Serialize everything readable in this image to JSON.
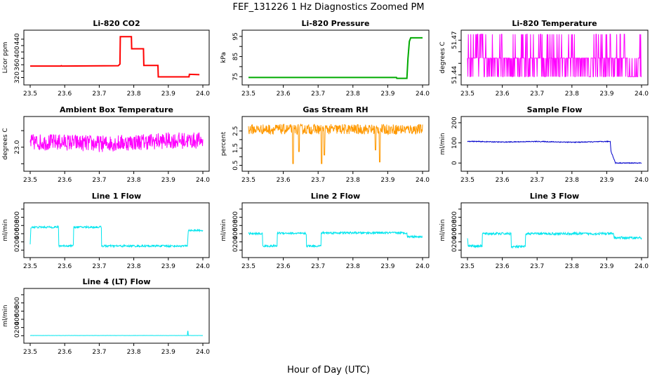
{
  "figure": {
    "title": "FEF_131226  1 Hz Diagnostics Zoomed PM",
    "xlabel": "Hour of Day (UTC)"
  },
  "chart_data": [
    {
      "type": "line",
      "title": "Li-820 CO2",
      "ylabel": "Licor ppm",
      "color": "#ff0000",
      "xlim": [
        23.5,
        24.0
      ],
      "xticks": [
        "23.5",
        "23.6",
        "23.7",
        "23.8",
        "23.9",
        "24.0"
      ],
      "ylim": [
        310,
        455
      ],
      "yticks": [
        320,
        340,
        360,
        380,
        400,
        420,
        440
      ],
      "ytick_labels": [
        "320",
        "",
        "360",
        "",
        "400",
        "",
        "440"
      ],
      "noise": 0,
      "x": [
        23.5,
        23.589,
        23.59,
        23.592,
        23.755,
        23.76,
        23.761,
        23.793,
        23.794,
        23.828,
        23.829,
        23.87,
        23.871,
        23.96,
        23.961,
        23.99
      ],
      "y": [
        356,
        356,
        357,
        356,
        357,
        362,
        448,
        448,
        410,
        410,
        358,
        358,
        322,
        322,
        330,
        329
      ]
    },
    {
      "type": "line",
      "title": "Li-820 Pressure",
      "ylabel": "kPa",
      "color": "#00aa00",
      "xlim": [
        23.5,
        24.0
      ],
      "xticks": [
        "23.5",
        "23.6",
        "23.7",
        "23.8",
        "23.9",
        "24.0"
      ],
      "ylim": [
        73,
        96
      ],
      "yticks": [
        75,
        80,
        85,
        90,
        95
      ],
      "ytick_labels": [
        "75",
        "",
        "85",
        "",
        "95"
      ],
      "noise": 0,
      "x": [
        23.5,
        23.925,
        23.926,
        23.955,
        23.958,
        23.962,
        23.966,
        24.0
      ],
      "y": [
        74.6,
        74.6,
        74.2,
        74.2,
        84.0,
        92.5,
        94.3,
        94.3
      ]
    },
    {
      "type": "line",
      "title": "Li-820 Temperature",
      "ylabel": "degrees C",
      "color": "#ff00ff",
      "xlim": [
        23.5,
        24.0
      ],
      "xticks": [
        "23.5",
        "23.6",
        "23.7",
        "23.8",
        "23.9",
        "24.0"
      ],
      "ylim": [
        51.435,
        51.475
      ],
      "yticks": [
        51.44,
        51.45,
        51.46,
        51.47
      ],
      "ytick_labels": [
        "51.44",
        "",
        "",
        "51.47"
      ],
      "noise": 0,
      "levels": [
        51.4385,
        51.4545,
        51.4752
      ],
      "x": [
        23.5,
        24.0
      ],
      "y": [
        51.4385,
        51.4545
      ]
    },
    {
      "type": "line",
      "title": "Ambient Box Temperature",
      "ylabel": "degrees C",
      "color": "#ff00ff",
      "xlim": [
        23.5,
        24.0
      ],
      "xticks": [
        "23.5",
        "23.6",
        "23.7",
        "23.8",
        "23.9",
        "24.0"
      ],
      "ylim": [
        22.4,
        23.8
      ],
      "yticks": [
        22.5,
        23.0,
        23.5
      ],
      "ytick_labels": [
        "",
        "23.0",
        ""
      ],
      "noise": 0.25,
      "x": [
        23.5,
        23.6,
        23.7,
        23.8,
        23.9,
        24.0
      ],
      "y": [
        23.15,
        23.15,
        23.1,
        23.15,
        23.2,
        23.2
      ]
    },
    {
      "type": "line",
      "title": "Gas Stream RH",
      "ylabel": "percent",
      "color": "#ff9900",
      "xlim": [
        23.5,
        24.0
      ],
      "xticks": [
        "23.5",
        "23.6",
        "23.7",
        "23.8",
        "23.9",
        "24.0"
      ],
      "ylim": [
        0.4,
        3.1
      ],
      "yticks": [
        0.5,
        1.0,
        1.5,
        2.0,
        2.5
      ],
      "ytick_labels": [
        "0.5",
        "",
        "1.5",
        "",
        "2.5"
      ],
      "noise": 0.3,
      "spikes": [
        [
          23.628,
          0.6
        ],
        [
          23.645,
          1.3
        ],
        [
          23.71,
          0.6
        ],
        [
          23.718,
          1.1
        ],
        [
          23.865,
          1.4
        ],
        [
          23.877,
          0.7
        ]
      ],
      "x": [
        23.5,
        23.6,
        23.7,
        23.8,
        23.9,
        24.0
      ],
      "y": [
        2.6,
        2.6,
        2.6,
        2.6,
        2.6,
        2.6
      ]
    },
    {
      "type": "line",
      "title": "Sample Flow",
      "ylabel": "ml/min",
      "color": "#0000cc",
      "xlim": [
        23.5,
        24.0
      ],
      "xticks": [
        "23.5",
        "23.6",
        "23.7",
        "23.8",
        "23.9",
        "24.0"
      ],
      "ylim": [
        -20,
        210
      ],
      "yticks": [
        0,
        100,
        200
      ],
      "ytick_labels": [
        "0",
        "100",
        "200"
      ],
      "noise": 2,
      "x": [
        23.5,
        23.6,
        23.7,
        23.8,
        23.91,
        23.912,
        23.925,
        24.0
      ],
      "y": [
        108,
        104,
        107,
        103,
        107,
        60,
        0,
        0
      ]
    },
    {
      "type": "line",
      "title": "Line 1 Flow",
      "ylabel": "ml/min",
      "color": "#00e5ee",
      "xlim": [
        23.5,
        24.0
      ],
      "xticks": [
        "23.5",
        "23.6",
        "23.7",
        "23.8",
        "23.9",
        "24.0"
      ],
      "ylim": [
        -80,
        1050
      ],
      "yticks": [
        0,
        200,
        400,
        600,
        800,
        1000
      ],
      "ytick_labels": [
        "0",
        "200",
        "400",
        "600",
        "800",
        ""
      ],
      "noise": 25,
      "x": [
        23.5,
        23.502,
        23.582,
        23.583,
        23.625,
        23.626,
        23.706,
        23.707,
        23.955,
        23.958,
        24.0
      ],
      "y": [
        120,
        560,
        560,
        105,
        105,
        560,
        560,
        100,
        100,
        480,
        480
      ]
    },
    {
      "type": "line",
      "title": "Line 2 Flow",
      "ylabel": "ml/min",
      "color": "#00e5ee",
      "xlim": [
        23.5,
        24.0
      ],
      "xticks": [
        "23.5",
        "23.6",
        "23.7",
        "23.8",
        "23.9",
        "24.0"
      ],
      "ylim": [
        -80,
        1050
      ],
      "yticks": [
        0,
        200,
        400,
        600,
        800,
        1000
      ],
      "ytick_labels": [
        "0",
        "200",
        "400",
        "600",
        "800",
        ""
      ],
      "noise": 25,
      "x": [
        23.5,
        23.54,
        23.541,
        23.582,
        23.583,
        23.666,
        23.667,
        23.708,
        23.709,
        23.955,
        23.956,
        24.0
      ],
      "y": [
        400,
        400,
        100,
        100,
        420,
        400,
        100,
        100,
        420,
        420,
        330,
        330
      ]
    },
    {
      "type": "line",
      "title": "Line 3 Flow",
      "ylabel": "ml/min",
      "color": "#00e5ee",
      "xlim": [
        23.5,
        24.0
      ],
      "xticks": [
        "23.5",
        "23.6",
        "23.7",
        "23.8",
        "23.9",
        "24.0"
      ],
      "ylim": [
        -80,
        1050
      ],
      "yticks": [
        0,
        200,
        400,
        600,
        800,
        1000
      ],
      "ytick_labels": [
        "0",
        "200",
        "400",
        "600",
        "800",
        ""
      ],
      "noise": 30,
      "x": [
        23.5,
        23.502,
        23.542,
        23.543,
        23.625,
        23.626,
        23.666,
        23.667,
        23.92,
        23.921,
        24.0
      ],
      "y": [
        300,
        100,
        100,
        400,
        400,
        80,
        80,
        400,
        400,
        300,
        300
      ]
    },
    {
      "type": "line",
      "title": "Line 4 (LT) Flow",
      "ylabel": "ml/min",
      "color": "#00e5ee",
      "xlim": [
        23.5,
        24.0
      ],
      "xticks": [
        "23.5",
        "23.6",
        "23.7",
        "23.8",
        "23.9",
        "24.0"
      ],
      "ylim": [
        -80,
        1050
      ],
      "yticks": [
        0,
        200,
        400,
        600,
        800,
        1000
      ],
      "ytick_labels": [
        "0",
        "200",
        "400",
        "600",
        "800",
        ""
      ],
      "noise": 2,
      "x": [
        23.5,
        23.955,
        23.956,
        23.957,
        23.958,
        24.0
      ],
      "y": [
        5,
        5,
        110,
        110,
        5,
        5
      ]
    }
  ]
}
